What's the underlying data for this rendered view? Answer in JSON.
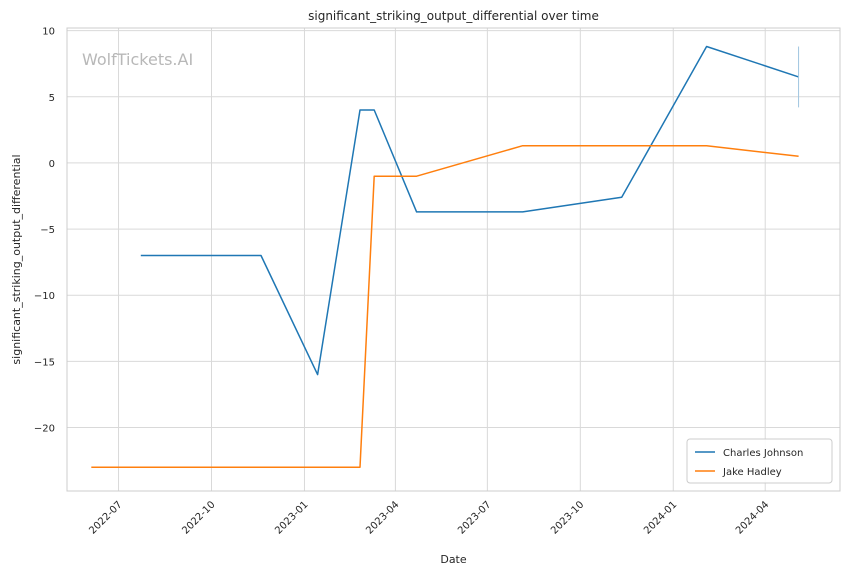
{
  "watermark": "WolfTickets.AI",
  "chart_data": {
    "type": "line",
    "title": "significant_striking_output_differential over time",
    "xlabel": "Date",
    "ylabel": "significant_striking_output_differential",
    "x_ticks": [
      "2022-07",
      "2022-10",
      "2023-01",
      "2023-04",
      "2023-07",
      "2023-10",
      "2024-01",
      "2024-04"
    ],
    "y_ticks": [
      -20,
      -15,
      -10,
      -5,
      0,
      5,
      10
    ],
    "xlim": [
      "2022-05-11",
      "2024-06-14"
    ],
    "ylim": [
      -24.8,
      10.2
    ],
    "grid": true,
    "legend_position": "lower-right",
    "series": [
      {
        "name": "Charles Johnson",
        "color": "#1f77b4",
        "points": [
          {
            "x": "2022-07-23",
            "y": -7.0
          },
          {
            "x": "2022-11-19",
            "y": -7.0
          },
          {
            "x": "2023-01-14",
            "y": -16.0
          },
          {
            "x": "2023-02-25",
            "y": 4.0
          },
          {
            "x": "2023-03-11",
            "y": 4.0
          },
          {
            "x": "2023-04-22",
            "y": -3.7
          },
          {
            "x": "2023-08-05",
            "y": -3.7
          },
          {
            "x": "2023-11-11",
            "y": -2.6
          },
          {
            "x": "2024-02-03",
            "y": 8.8
          },
          {
            "x": "2024-05-04",
            "y": 6.5
          }
        ]
      },
      {
        "name": "Jake Hadley",
        "color": "#ff7f0e",
        "points": [
          {
            "x": "2022-06-04",
            "y": -23.0
          },
          {
            "x": "2023-02-25",
            "y": -23.0
          },
          {
            "x": "2023-03-11",
            "y": -1.0
          },
          {
            "x": "2023-04-22",
            "y": -1.0
          },
          {
            "x": "2023-08-05",
            "y": 1.3
          },
          {
            "x": "2024-02-03",
            "y": 1.3
          },
          {
            "x": "2024-05-04",
            "y": 0.5
          }
        ]
      }
    ]
  }
}
